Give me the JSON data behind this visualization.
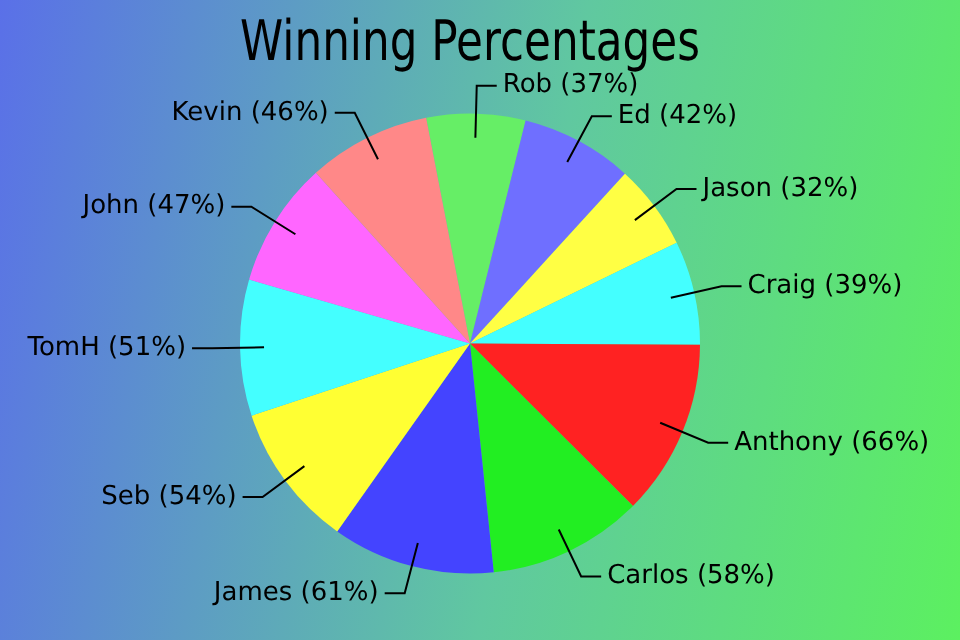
{
  "chart_data": {
    "type": "pie",
    "title": "Winning Percentages",
    "categories": [
      "Rob (37%)",
      "Ed (42%)",
      "Jason (32%)",
      "Craig (39%)",
      "Anthony (66%)",
      "Carlos (58%)",
      "James (61%)",
      "Seb (54%)",
      "TomH (51%)",
      "John (47%)",
      "Kevin (46%)"
    ],
    "values": [
      37,
      42,
      32,
      39,
      66,
      58,
      61,
      54,
      51,
      47,
      46
    ],
    "colors": [
      "#66ee66",
      "#6f6fff",
      "#ffff44",
      "#44ffff",
      "#ff2222",
      "#22ee22",
      "#4444ff",
      "#ffff33",
      "#44ffff",
      "#ff66ff",
      "#ff8888"
    ]
  }
}
